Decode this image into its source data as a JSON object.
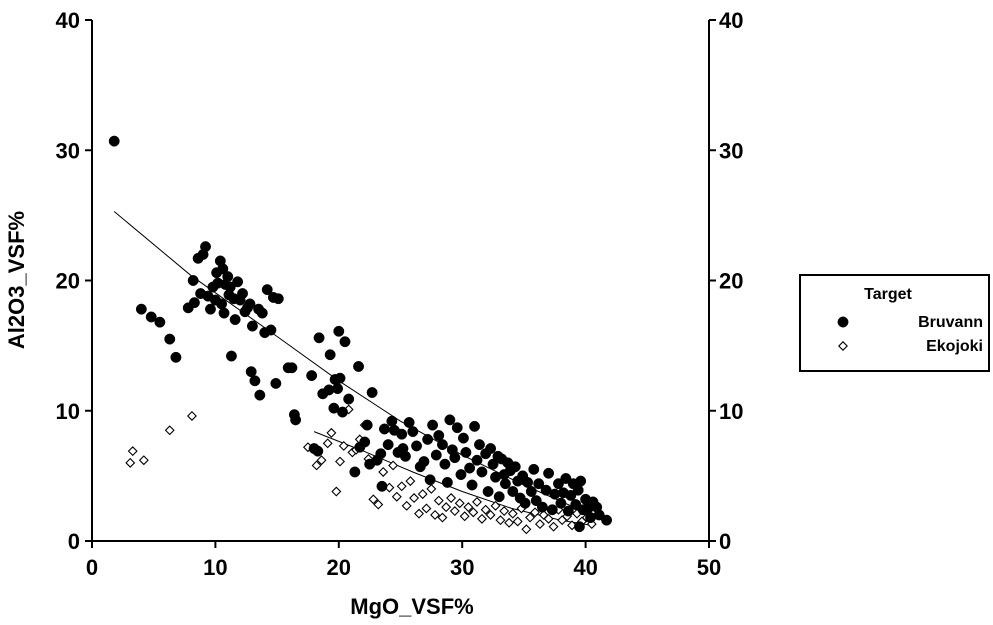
{
  "chart_data": {
    "type": "scatter",
    "xlabel": "MgO_VSF%",
    "ylabel": "Al2O3_VSF%",
    "xlim": [
      0,
      50
    ],
    "ylim": [
      0,
      40
    ],
    "xticks": [
      "0",
      "10",
      "20",
      "30",
      "40",
      "50"
    ],
    "yticks": [
      "0",
      "10",
      "20",
      "30",
      "40"
    ],
    "right_axis": true,
    "grid": false,
    "legend": {
      "title": "Target",
      "placement": "right"
    },
    "series": [
      {
        "name": "Bruvann",
        "marker": "filled-circle",
        "color": "#000000",
        "points": [
          [
            1.8,
            30.7
          ],
          [
            4,
            17.8
          ],
          [
            4.8,
            17.2
          ],
          [
            5.5,
            16.8
          ],
          [
            6.3,
            15.5
          ],
          [
            6.8,
            14.1
          ],
          [
            7.8,
            17.9
          ],
          [
            8.2,
            20
          ],
          [
            8.3,
            18.3
          ],
          [
            8.6,
            21.7
          ],
          [
            8.8,
            19
          ],
          [
            9,
            22
          ],
          [
            9.2,
            22.6
          ],
          [
            9.4,
            18.8
          ],
          [
            9.6,
            17.8
          ],
          [
            9.8,
            19.5
          ],
          [
            10,
            18.5
          ],
          [
            10.1,
            20.6
          ],
          [
            10.2,
            19.8
          ],
          [
            10.4,
            21.5
          ],
          [
            10.5,
            18.2
          ],
          [
            10.6,
            20.9
          ],
          [
            10.7,
            17.5
          ],
          [
            10.8,
            19.7
          ],
          [
            11,
            20.3
          ],
          [
            11.1,
            18.9
          ],
          [
            11.2,
            19.5
          ],
          [
            11.3,
            14.2
          ],
          [
            11.5,
            18.6
          ],
          [
            11.6,
            17
          ],
          [
            11.8,
            19.9
          ],
          [
            12,
            18.5
          ],
          [
            12.2,
            19
          ],
          [
            12.4,
            17.6
          ],
          [
            12.6,
            17.9
          ],
          [
            12.8,
            18.2
          ],
          [
            12.9,
            13
          ],
          [
            13,
            16.5
          ],
          [
            13.2,
            12.3
          ],
          [
            13.5,
            17.8
          ],
          [
            13.6,
            11.2
          ],
          [
            13.8,
            17.5
          ],
          [
            14,
            16
          ],
          [
            14.2,
            19.3
          ],
          [
            14.5,
            16.2
          ],
          [
            14.7,
            18.7
          ],
          [
            14.9,
            12.1
          ],
          [
            15.1,
            18.6
          ],
          [
            15.9,
            13.3
          ],
          [
            16.2,
            13.3
          ],
          [
            16.4,
            9.7
          ],
          [
            16.5,
            9.3
          ],
          [
            17.8,
            12.7
          ],
          [
            18,
            7.1
          ],
          [
            18.3,
            6.9
          ],
          [
            18.4,
            15.6
          ],
          [
            18.7,
            11.3
          ],
          [
            19.2,
            11.6
          ],
          [
            19.3,
            14.3
          ],
          [
            19.6,
            10.2
          ],
          [
            19.7,
            12.4
          ],
          [
            19.9,
            11.7
          ],
          [
            20,
            16.1
          ],
          [
            20.1,
            12.5
          ],
          [
            20.3,
            9.9
          ],
          [
            20.5,
            15.3
          ],
          [
            20.8,
            10.9
          ],
          [
            21.3,
            5.3
          ],
          [
            21.6,
            13.4
          ],
          [
            21.7,
            7.2
          ],
          [
            22.1,
            7.6
          ],
          [
            22.3,
            8.9
          ],
          [
            22.5,
            5.9
          ],
          [
            22.7,
            11.4
          ],
          [
            23.1,
            6.2
          ],
          [
            23.4,
            6.7
          ],
          [
            23.5,
            4.2
          ],
          [
            23.7,
            8.6
          ],
          [
            24,
            7.4
          ],
          [
            24.3,
            9.2
          ],
          [
            24.5,
            8.5
          ],
          [
            24.8,
            6.8
          ],
          [
            25.1,
            8.2
          ],
          [
            25.2,
            7.1
          ],
          [
            25.4,
            6.5
          ],
          [
            25.7,
            9.1
          ],
          [
            26,
            8.4
          ],
          [
            26.3,
            7.3
          ],
          [
            26.6,
            5.7
          ],
          [
            26.9,
            6.1
          ],
          [
            27.2,
            7.8
          ],
          [
            27.4,
            4.7
          ],
          [
            27.6,
            8.9
          ],
          [
            27.9,
            6.6
          ],
          [
            28.1,
            8.1
          ],
          [
            28.4,
            7.4
          ],
          [
            28.6,
            5.9
          ],
          [
            28.8,
            4.5
          ],
          [
            29,
            9.3
          ],
          [
            29.2,
            7
          ],
          [
            29.4,
            6.4
          ],
          [
            29.6,
            8.7
          ],
          [
            29.9,
            5.1
          ],
          [
            30.1,
            7.9
          ],
          [
            30.3,
            6.8
          ],
          [
            30.6,
            5.6
          ],
          [
            30.8,
            4.3
          ],
          [
            31,
            8.8
          ],
          [
            31.2,
            6.2
          ],
          [
            31.4,
            7.4
          ],
          [
            31.6,
            5.3
          ],
          [
            31.9,
            6.7
          ],
          [
            32.1,
            3.8
          ],
          [
            32.3,
            7.1
          ],
          [
            32.5,
            5.9
          ],
          [
            32.7,
            4.9
          ],
          [
            32.9,
            6.5
          ],
          [
            33,
            3.4
          ],
          [
            33.2,
            6.3
          ],
          [
            33.4,
            5.1
          ],
          [
            33.5,
            4.4
          ],
          [
            33.7,
            6
          ],
          [
            33.9,
            5.4
          ],
          [
            34.1,
            3.8
          ],
          [
            34.3,
            5.7
          ],
          [
            34.5,
            4.6
          ],
          [
            34.7,
            3.3
          ],
          [
            34.9,
            5
          ],
          [
            35.1,
            2.9
          ],
          [
            35.3,
            4.5
          ],
          [
            35.6,
            3.8
          ],
          [
            35.8,
            5.5
          ],
          [
            36,
            3.1
          ],
          [
            36.2,
            4.4
          ],
          [
            36.5,
            2.6
          ],
          [
            36.8,
            3.9
          ],
          [
            37,
            5.2
          ],
          [
            37.3,
            2.4
          ],
          [
            37.5,
            3.6
          ],
          [
            37.8,
            4.4
          ],
          [
            38,
            2.9
          ],
          [
            38.2,
            3.7
          ],
          [
            38.4,
            4.8
          ],
          [
            38.6,
            2.3
          ],
          [
            38.8,
            3.5
          ],
          [
            39,
            4.4
          ],
          [
            39.2,
            2.8
          ],
          [
            39.4,
            3.9
          ],
          [
            39.5,
            1.1
          ],
          [
            39.6,
            4.6
          ],
          [
            39.8,
            2.4
          ],
          [
            40,
            3.2
          ],
          [
            40.2,
            2.5
          ],
          [
            40.4,
            1.8
          ],
          [
            40.6,
            3
          ],
          [
            40.9,
            2.6
          ],
          [
            41.1,
            2
          ],
          [
            41.7,
            1.6
          ]
        ]
      },
      {
        "name": "Ekojoki",
        "marker": "open-diamond",
        "color": "#000000",
        "points": [
          [
            3.1,
            6
          ],
          [
            3.3,
            6.9
          ],
          [
            4.2,
            6.2
          ],
          [
            6.3,
            8.5
          ],
          [
            8.1,
            9.6
          ],
          [
            17.5,
            7.2
          ],
          [
            18.2,
            5.8
          ],
          [
            18.6,
            6.2
          ],
          [
            19.1,
            7.5
          ],
          [
            19.4,
            8.3
          ],
          [
            19.8,
            3.8
          ],
          [
            20.1,
            6.1
          ],
          [
            20.4,
            7.3
          ],
          [
            20.8,
            10.1
          ],
          [
            21.1,
            6.8
          ],
          [
            21.4,
            7
          ],
          [
            21.7,
            7.8
          ],
          [
            22.1,
            8.9
          ],
          [
            22.4,
            6.3
          ],
          [
            22.8,
            3.2
          ],
          [
            23.2,
            2.8
          ],
          [
            23.6,
            5.3
          ],
          [
            24.1,
            4.1
          ],
          [
            24.4,
            5.8
          ],
          [
            24.7,
            3.4
          ],
          [
            25.1,
            4.2
          ],
          [
            25.5,
            2.7
          ],
          [
            25.8,
            4.6
          ],
          [
            26.1,
            3.3
          ],
          [
            26.5,
            2.1
          ],
          [
            26.8,
            3.6
          ],
          [
            27.1,
            2.5
          ],
          [
            27.5,
            4
          ],
          [
            27.8,
            2
          ],
          [
            28.1,
            3.1
          ],
          [
            28.4,
            1.8
          ],
          [
            28.7,
            2.6
          ],
          [
            29.1,
            3.3
          ],
          [
            29.4,
            2.3
          ],
          [
            29.8,
            2.9
          ],
          [
            30.2,
            1.9
          ],
          [
            30.5,
            2.6
          ],
          [
            30.9,
            2.2
          ],
          [
            31.2,
            3
          ],
          [
            31.6,
            1.7
          ],
          [
            31.9,
            2.4
          ],
          [
            32.3,
            2
          ],
          [
            32.7,
            2.7
          ],
          [
            33.1,
            1.6
          ],
          [
            33.4,
            2.3
          ],
          [
            33.8,
            1.4
          ],
          [
            34.1,
            2.1
          ],
          [
            34.5,
            1.5
          ],
          [
            34.8,
            2.5
          ],
          [
            35.2,
            0.9
          ],
          [
            35.5,
            1.8
          ],
          [
            35.9,
            2.2
          ],
          [
            36.3,
            1.3
          ],
          [
            36.6,
            2
          ],
          [
            37,
            1.7
          ],
          [
            37.4,
            1.1
          ],
          [
            37.8,
            2.4
          ],
          [
            38.1,
            1.6
          ],
          [
            38.5,
            1.9
          ],
          [
            38.9,
            1.2
          ],
          [
            39.3,
            2.1
          ],
          [
            39.7,
            1.5
          ],
          [
            40.1,
            1.8
          ],
          [
            40.5,
            1.3
          ]
        ]
      }
    ],
    "trend_lines": [
      {
        "series": "Bruvann",
        "points": [
          [
            1.8,
            25.3
          ],
          [
            8,
            20.4
          ],
          [
            15,
            15.7
          ],
          [
            20,
            12.3
          ],
          [
            25,
            9.2
          ],
          [
            30,
            6.6
          ],
          [
            35,
            4.3
          ],
          [
            40,
            2.2
          ],
          [
            41.7,
            1.6
          ]
        ]
      },
      {
        "series": "Ekojoki",
        "points": [
          [
            18,
            8.4
          ],
          [
            22,
            6.9
          ],
          [
            26,
            5.3
          ],
          [
            30,
            3.8
          ],
          [
            34,
            2.5
          ],
          [
            38,
            1.6
          ],
          [
            40.5,
            1.2
          ]
        ]
      }
    ]
  }
}
